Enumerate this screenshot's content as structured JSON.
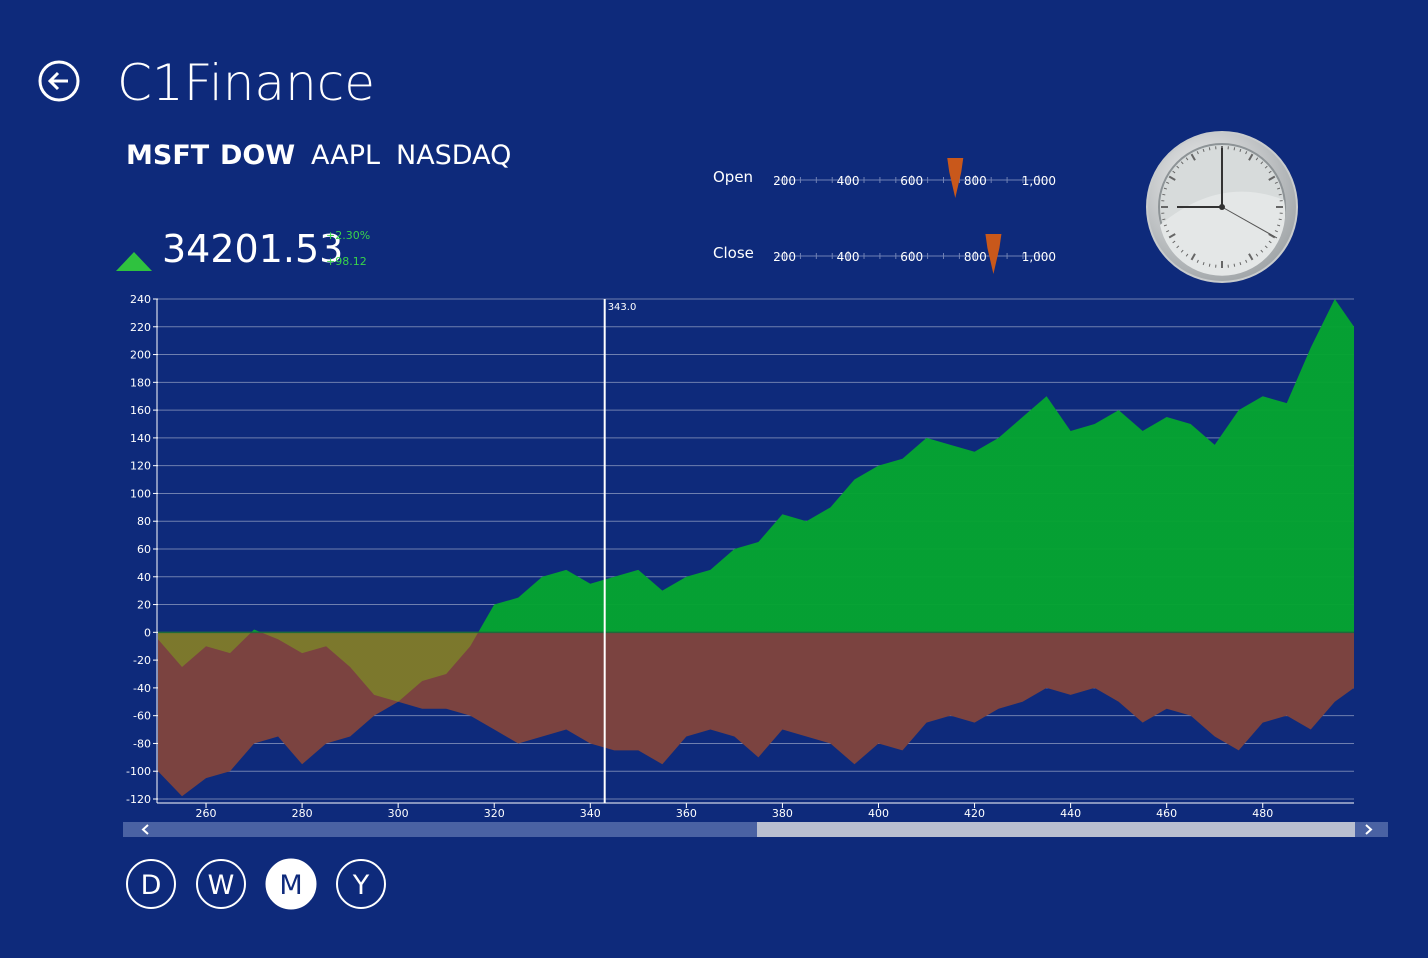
{
  "header": {
    "title": "C1Finance"
  },
  "tabs": [
    "MSFT",
    "DOW",
    "AAPL",
    "NASDAQ"
  ],
  "quote": {
    "price": "34201.53",
    "change_percent": "+2.30%",
    "change": "+98.12"
  },
  "sliders": [
    {
      "label": "Open",
      "lim": [
        170,
        1035
      ],
      "ticks": [
        200,
        400,
        600,
        800,
        {
          "value": 1000,
          "label": "1,000"
        }
      ],
      "value": 737
    },
    {
      "label": "Close",
      "lim": [
        170,
        1035
      ],
      "ticks": [
        200,
        400,
        600,
        800,
        {
          "value": 1000,
          "label": "1,000"
        }
      ],
      "value": 857
    }
  ],
  "chart_data": {
    "type": "area",
    "x": [
      250,
      255,
      260,
      265,
      270,
      275,
      280,
      285,
      290,
      295,
      300,
      305,
      310,
      315,
      320,
      325,
      330,
      335,
      340,
      345,
      350,
      355,
      360,
      365,
      370,
      375,
      380,
      385,
      390,
      395,
      400,
      405,
      410,
      415,
      420,
      425,
      430,
      435,
      440,
      445,
      450,
      455,
      460,
      465,
      470,
      475,
      480,
      485,
      490,
      495,
      499
    ],
    "series": [
      {
        "color": "#05a431",
        "negative_color": "#7c7a2c",
        "values": [
          -5,
          -25,
          -10,
          -15,
          2,
          -5,
          -15,
          -10,
          -25,
          -45,
          -50,
          -35,
          -30,
          -10,
          20,
          25,
          40,
          45,
          35,
          40,
          45,
          30,
          40,
          45,
          60,
          65,
          85,
          80,
          90,
          110,
          120,
          125,
          140,
          135,
          130,
          140,
          155,
          170,
          145,
          150,
          160,
          145,
          155,
          150,
          135,
          160,
          170,
          165,
          205,
          240,
          220
        ]
      },
      {
        "color": "#7b4340",
        "values": [
          -100,
          -118,
          -105,
          -100,
          -80,
          -75,
          -95,
          -80,
          -75,
          -60,
          -50,
          -55,
          -55,
          -60,
          -70,
          -80,
          -75,
          -70,
          -80,
          -85,
          -85,
          -95,
          -75,
          -70,
          -75,
          -90,
          -70,
          -75,
          -80,
          -95,
          -80,
          -85,
          -65,
          -60,
          -65,
          -55,
          -50,
          -40,
          -45,
          -40,
          -50,
          -65,
          -55,
          -60,
          -75,
          -85,
          -65,
          -60,
          -70,
          -50,
          -40
        ]
      }
    ],
    "xlim": [
      250,
      499
    ],
    "ylim": [
      -120,
      240
    ],
    "xticks": [
      260,
      280,
      300,
      320,
      340,
      360,
      380,
      400,
      420,
      440,
      460,
      480
    ],
    "yticks": [
      -120,
      -100,
      -80,
      -60,
      -40,
      -20,
      0,
      20,
      40,
      60,
      80,
      100,
      120,
      140,
      160,
      180,
      200,
      220,
      240
    ],
    "grid": true,
    "crosshair": {
      "x": 343,
      "label": "343.0"
    }
  },
  "period_buttons": [
    "D",
    "W",
    "M",
    "Y"
  ],
  "selected_period": 2
}
